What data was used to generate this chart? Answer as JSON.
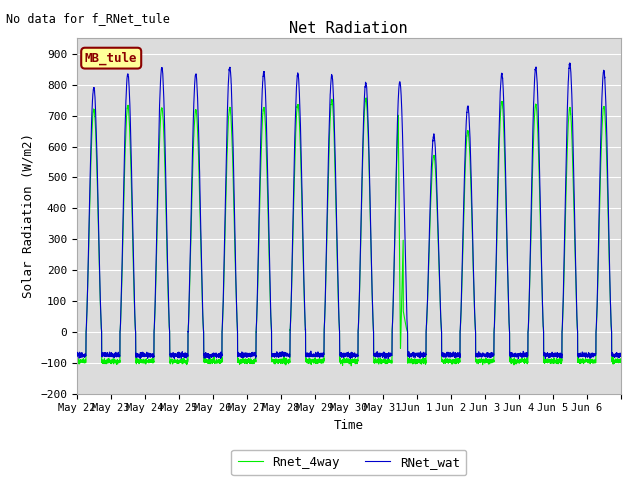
{
  "title": "Net Radiation",
  "xlabel": "Time",
  "ylabel": "Solar Radiation (W/m2)",
  "no_data_text": "No data for f_RNet_tule",
  "legend_label1": "RNet_wat",
  "legend_label2": "Rnet_4way",
  "legend_box_label": "MB_tule",
  "ylim": [
    -200,
    950
  ],
  "yticks": [
    -200,
    -100,
    0,
    100,
    200,
    300,
    400,
    500,
    600,
    700,
    800,
    900
  ],
  "color_blue": "#0000CC",
  "color_green": "#00EE00",
  "background_color": "#DCDCDC",
  "num_days": 16,
  "x_tick_labels": [
    "May 22",
    "May 23",
    "May 24",
    "May 25",
    "May 26",
    "May 27",
    "May 28",
    "May 29",
    "May 30",
    "May 31",
    "Jun 1",
    "Jun 2",
    "Jun 3",
    "Jun 4",
    "Jun 5",
    "Jun 6"
  ],
  "night_blue": -75,
  "night_green": -95,
  "blue_peaks": [
    790,
    835,
    855,
    835,
    855,
    840,
    835,
    830,
    805,
    810,
    635,
    730,
    835,
    855,
    870,
    845
  ],
  "green_peaks": [
    720,
    730,
    725,
    720,
    725,
    725,
    735,
    750,
    755,
    700,
    570,
    650,
    745,
    735,
    725,
    730
  ]
}
